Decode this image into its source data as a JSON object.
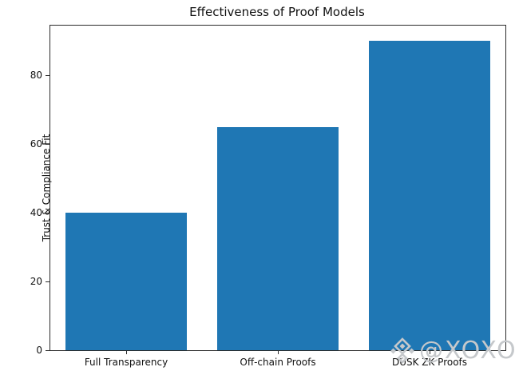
{
  "figure": {
    "background": "#ffffff"
  },
  "chart_data": {
    "type": "bar",
    "title": "Effectiveness of Proof Models",
    "xlabel": "",
    "ylabel": "Trust & Compliance Fit",
    "categories": [
      "Full Transparency",
      "Off-chain Proofs",
      "DUSK ZK Proofs"
    ],
    "values": [
      40,
      65,
      90
    ],
    "yticks": [
      0,
      20,
      40,
      60,
      80
    ],
    "ylim": [
      0,
      94.5
    ],
    "bar_color": "#1f77b4",
    "grid": false,
    "legend": "none",
    "spine_color": "#2b2b2b",
    "text_color": "#111111"
  },
  "watermark": {
    "icon": "diamond-cluster-logo",
    "text": "@XOXO",
    "color": "#c5c8cb"
  }
}
